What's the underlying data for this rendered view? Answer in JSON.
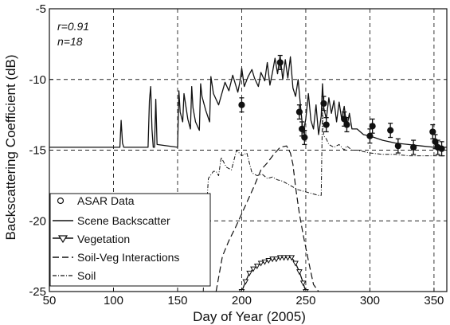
{
  "chart_data": {
    "type": "line",
    "xlabel": "Day of Year (2005)",
    "ylabel": "Backscattering Coefficient (dB)",
    "xlim": [
      50,
      360
    ],
    "ylim": [
      -25,
      -5
    ],
    "xticks": [
      50,
      100,
      150,
      200,
      250,
      300,
      350
    ],
    "yticks": [
      -25,
      -20,
      -15,
      -10,
      -5
    ],
    "grid": "dashed",
    "annotations": [
      "r=0.91",
      "n=18"
    ],
    "legend": {
      "placement": "bottom-left",
      "entries": [
        "ASAR Data",
        "Scene Backscatter",
        "Vegetation",
        "Soil-Veg Interactions",
        "Soil"
      ]
    },
    "series": [
      {
        "name": "ASAR Data",
        "style": "markers-with-errorbars",
        "points": [
          {
            "x": 200,
            "y": -11.8
          },
          {
            "x": 230,
            "y": -8.8
          },
          {
            "x": 245,
            "y": -12.3
          },
          {
            "x": 247,
            "y": -13.5
          },
          {
            "x": 249,
            "y": -14.1
          },
          {
            "x": 264,
            "y": -11.7
          },
          {
            "x": 266,
            "y": -13.2
          },
          {
            "x": 280,
            "y": -12.8
          },
          {
            "x": 282,
            "y": -13.2
          },
          {
            "x": 300,
            "y": -14.0
          },
          {
            "x": 302,
            "y": -13.3
          },
          {
            "x": 316,
            "y": -13.6
          },
          {
            "x": 322,
            "y": -14.7
          },
          {
            "x": 334,
            "y": -14.8
          },
          {
            "x": 349,
            "y": -13.7
          },
          {
            "x": 351,
            "y": -14.4
          },
          {
            "x": 353,
            "y": -14.8
          },
          {
            "x": 356,
            "y": -14.9
          }
        ],
        "error": 0.5
      },
      {
        "name": "Scene Backscatter",
        "style": "solid",
        "x": [
          50,
          105,
          106,
          107,
          108,
          127,
          128,
          129,
          130,
          131,
          132,
          133,
          134,
          150,
          151,
          152,
          154,
          155,
          156,
          158,
          160,
          161,
          162,
          164,
          167,
          168,
          169,
          172,
          175,
          176,
          178,
          182,
          187,
          190,
          193,
          197,
          199,
          200,
          202,
          205,
          208,
          210,
          213,
          215,
          218,
          220,
          222,
          224,
          226,
          228,
          230,
          232,
          234,
          236,
          238,
          240,
          242,
          244,
          246,
          248,
          250,
          252,
          254,
          256,
          258,
          260,
          262,
          263,
          264,
          266,
          268,
          270,
          272,
          274,
          276,
          278,
          280,
          282,
          284,
          286,
          290,
          295,
          300,
          310,
          320,
          330,
          340,
          350,
          360
        ],
        "y": [
          -14.8,
          -14.8,
          -12.9,
          -14.5,
          -14.8,
          -14.8,
          -11.5,
          -10.5,
          -13.5,
          -14.8,
          -14.8,
          -11.4,
          -14.6,
          -14.8,
          -10.8,
          -12.3,
          -13.0,
          -11.0,
          -11.6,
          -12.8,
          -13.5,
          -10.5,
          -12.0,
          -13.0,
          -13.6,
          -10.3,
          -11.2,
          -12.2,
          -13.0,
          -9.8,
          -11.0,
          -11.8,
          -10.2,
          -10.8,
          -9.7,
          -10.9,
          -10.0,
          -9.2,
          -10.5,
          -9.8,
          -9.3,
          -9.9,
          -10.5,
          -9.5,
          -10.1,
          -8.8,
          -10.4,
          -9.5,
          -8.5,
          -9.6,
          -8.3,
          -10.0,
          -8.6,
          -9.9,
          -8.4,
          -10.6,
          -11.2,
          -10.0,
          -12.0,
          -13.8,
          -12.8,
          -11.0,
          -12.9,
          -13.5,
          -11.8,
          -13.9,
          -12.6,
          -10.3,
          -12.0,
          -12.8,
          -11.3,
          -12.4,
          -11.5,
          -13.0,
          -11.6,
          -12.8,
          -11.9,
          -13.4,
          -12.4,
          -13.5,
          -13.5,
          -13.9,
          -14.0,
          -14.3,
          -14.5,
          -14.6,
          -14.7,
          -14.8,
          -14.8
        ]
      },
      {
        "name": "Vegetation",
        "style": "solid-triangle-markers",
        "x": [
          200,
          203,
          206,
          209,
          212,
          215,
          218,
          221,
          224,
          227,
          230,
          233,
          236,
          239,
          242,
          245,
          248,
          250
        ],
        "y": [
          -25.0,
          -24.3,
          -23.7,
          -23.4,
          -23.2,
          -23.0,
          -22.9,
          -22.8,
          -22.7,
          -22.7,
          -22.6,
          -22.6,
          -22.6,
          -22.6,
          -23.0,
          -23.6,
          -24.4,
          -25.0
        ]
      },
      {
        "name": "Soil-Veg Interactions",
        "style": "dashed",
        "x": [
          180,
          185,
          190,
          195,
          200,
          205,
          210,
          215,
          220,
          225,
          230,
          235,
          238,
          240,
          242,
          245,
          248,
          252,
          256,
          260
        ],
        "y": [
          -25.0,
          -22.5,
          -21.4,
          -20.5,
          -19.5,
          -18.5,
          -17.5,
          -16.4,
          -15.9,
          -15.3,
          -14.8,
          -14.7,
          -15.2,
          -16.0,
          -17.6,
          -19.5,
          -21.0,
          -22.8,
          -24.5,
          -25.0
        ]
      },
      {
        "name": "Soil",
        "style": "dash-dot",
        "x": [
          170,
          172,
          174,
          178,
          180,
          182,
          184,
          188,
          192,
          196,
          200,
          204,
          208,
          212,
          216,
          220,
          224,
          228,
          232,
          236,
          240,
          244,
          248,
          252,
          256,
          260,
          262,
          263,
          264,
          266,
          268,
          272,
          276,
          280,
          282,
          286,
          290,
          295,
          300,
          310,
          320,
          330,
          340,
          350,
          360
        ],
        "y": [
          -25.0,
          -20.0,
          -17.0,
          -16.5,
          -16.5,
          -16.8,
          -15.5,
          -16.2,
          -16.4,
          -15.0,
          -15.4,
          -15.2,
          -16.6,
          -16.8,
          -16.7,
          -17.0,
          -16.9,
          -17.1,
          -17.2,
          -17.4,
          -17.6,
          -17.8,
          -17.9,
          -18.0,
          -18.1,
          -18.2,
          -18.2,
          -12.0,
          -14.0,
          -14.2,
          -14.6,
          -14.8,
          -14.6,
          -15.0,
          -14.7,
          -15.0,
          -15.0,
          -15.1,
          -15.2,
          -15.3,
          -15.3,
          -15.4,
          -15.4,
          -15.4,
          -15.4
        ]
      }
    ]
  }
}
